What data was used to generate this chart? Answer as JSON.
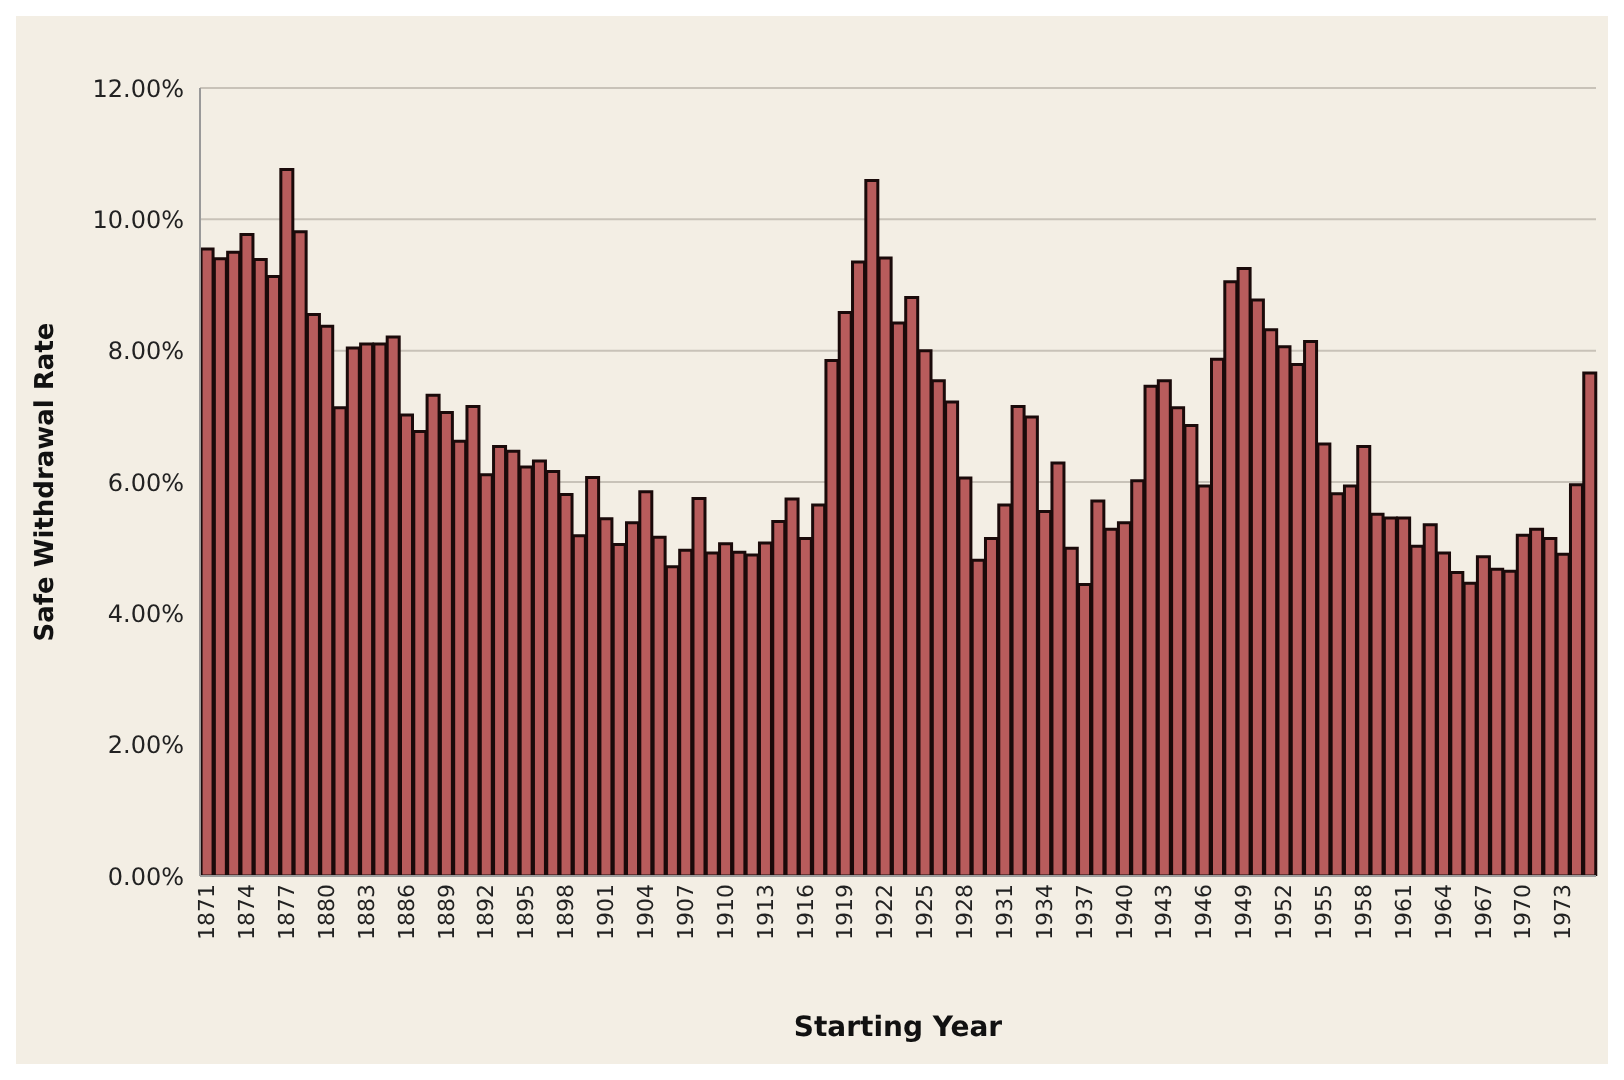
{
  "chart_data": {
    "type": "bar",
    "xlabel": "Starting Year",
    "ylabel": "Safe Withdrawal Rate",
    "categories": [
      "1871",
      null,
      null,
      "1874",
      null,
      null,
      "1877",
      null,
      null,
      "1880",
      null,
      null,
      "1883",
      null,
      null,
      "1886",
      null,
      null,
      "1889",
      null,
      null,
      "1892",
      null,
      null,
      "1895",
      null,
      null,
      "1898",
      null,
      null,
      "1901",
      null,
      null,
      "1904",
      null,
      null,
      "1907",
      null,
      null,
      "1910",
      null,
      null,
      "1913",
      null,
      null,
      "1916",
      null,
      null,
      "1919",
      null,
      null,
      "1922",
      null,
      null,
      "1925",
      null,
      null,
      "1928",
      null,
      null,
      "1931",
      null,
      null,
      "1934",
      null,
      null,
      "1937",
      null,
      null,
      "1940",
      null,
      null,
      "1943",
      null,
      null,
      "1946",
      null,
      null,
      "1949",
      null,
      null,
      "1952",
      null,
      null,
      "1955",
      null,
      null,
      "1958",
      null,
      null,
      "1961",
      null,
      null,
      "1964",
      null,
      null,
      "1967",
      null,
      null,
      "1970",
      null,
      null,
      "1973",
      null,
      null
    ],
    "values": [
      9.55,
      9.4,
      9.5,
      9.77,
      9.39,
      9.13,
      10.76,
      9.81,
      8.55,
      8.37,
      7.13,
      8.04,
      8.1,
      8.1,
      8.21,
      7.02,
      6.77,
      7.32,
      7.06,
      6.62,
      7.15,
      6.11,
      6.54,
      6.47,
      6.23,
      6.32,
      6.16,
      5.81,
      5.18,
      6.07,
      5.44,
      5.05,
      5.38,
      5.85,
      5.16,
      4.71,
      4.96,
      5.75,
      4.92,
      5.06,
      4.93,
      4.89,
      5.07,
      5.4,
      5.74,
      5.14,
      5.65,
      7.85,
      8.58,
      9.35,
      10.59,
      9.41,
      8.42,
      8.81,
      8.0,
      7.54,
      7.22,
      6.06,
      4.81,
      5.14,
      5.65,
      7.15,
      6.99,
      5.55,
      6.29,
      4.99,
      4.44,
      5.71,
      5.28,
      5.38,
      6.02,
      7.46,
      7.54,
      7.13,
      6.86,
      5.94,
      7.87,
      9.05,
      9.25,
      8.77,
      8.32,
      8.06,
      7.79,
      8.14,
      6.58,
      5.82,
      5.94,
      6.54,
      5.51,
      5.45,
      5.45,
      5.02,
      5.35,
      4.92,
      4.62,
      4.46,
      4.86,
      4.67,
      4.64,
      5.19,
      5.28,
      5.14,
      4.9,
      5.96,
      7.66
    ],
    "color": "#b85c5c",
    "ylim": [
      0,
      12
    ],
    "yticks": [
      {
        "value": 0,
        "label": "0.00%"
      },
      {
        "value": 2,
        "label": "2.00%"
      },
      {
        "value": 4,
        "label": "4.00%"
      },
      {
        "value": 6,
        "label": "6.00%"
      },
      {
        "value": 8,
        "label": "8.00%"
      },
      {
        "value": 10,
        "label": "10.00%"
      },
      {
        "value": 12,
        "label": "12.00%"
      }
    ],
    "grid": "y"
  }
}
